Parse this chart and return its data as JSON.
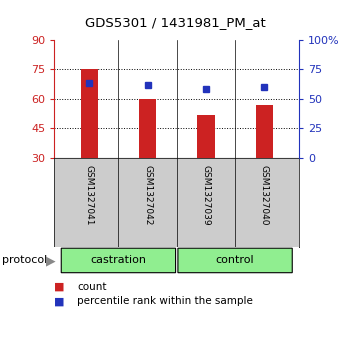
{
  "title": "GDS5301 / 1431981_PM_at",
  "samples": [
    "GSM1327041",
    "GSM1327042",
    "GSM1327039",
    "GSM1327040"
  ],
  "bar_values": [
    75,
    60,
    52,
    57
  ],
  "dot_values": [
    68,
    67,
    65,
    66
  ],
  "ylim_left": [
    30,
    90
  ],
  "ylim_right": [
    0,
    100
  ],
  "yticks_left": [
    30,
    45,
    60,
    75,
    90
  ],
  "yticks_right": [
    0,
    25,
    50,
    75,
    100
  ],
  "ytick_labels_right": [
    "0",
    "25",
    "50",
    "75",
    "100%"
  ],
  "bar_color": "#cc2222",
  "dot_color": "#2233bb",
  "bar_bottom": 30,
  "groups": [
    {
      "label": "castration",
      "color": "#90ee90"
    },
    {
      "label": "control",
      "color": "#90ee90"
    }
  ],
  "protocol_label": "protocol",
  "legend_count_label": "count",
  "legend_pct_label": "percentile rank within the sample",
  "grid_yticks": [
    45,
    60,
    75
  ],
  "sample_box_color": "#cccccc",
  "bg_color": "#ffffff"
}
